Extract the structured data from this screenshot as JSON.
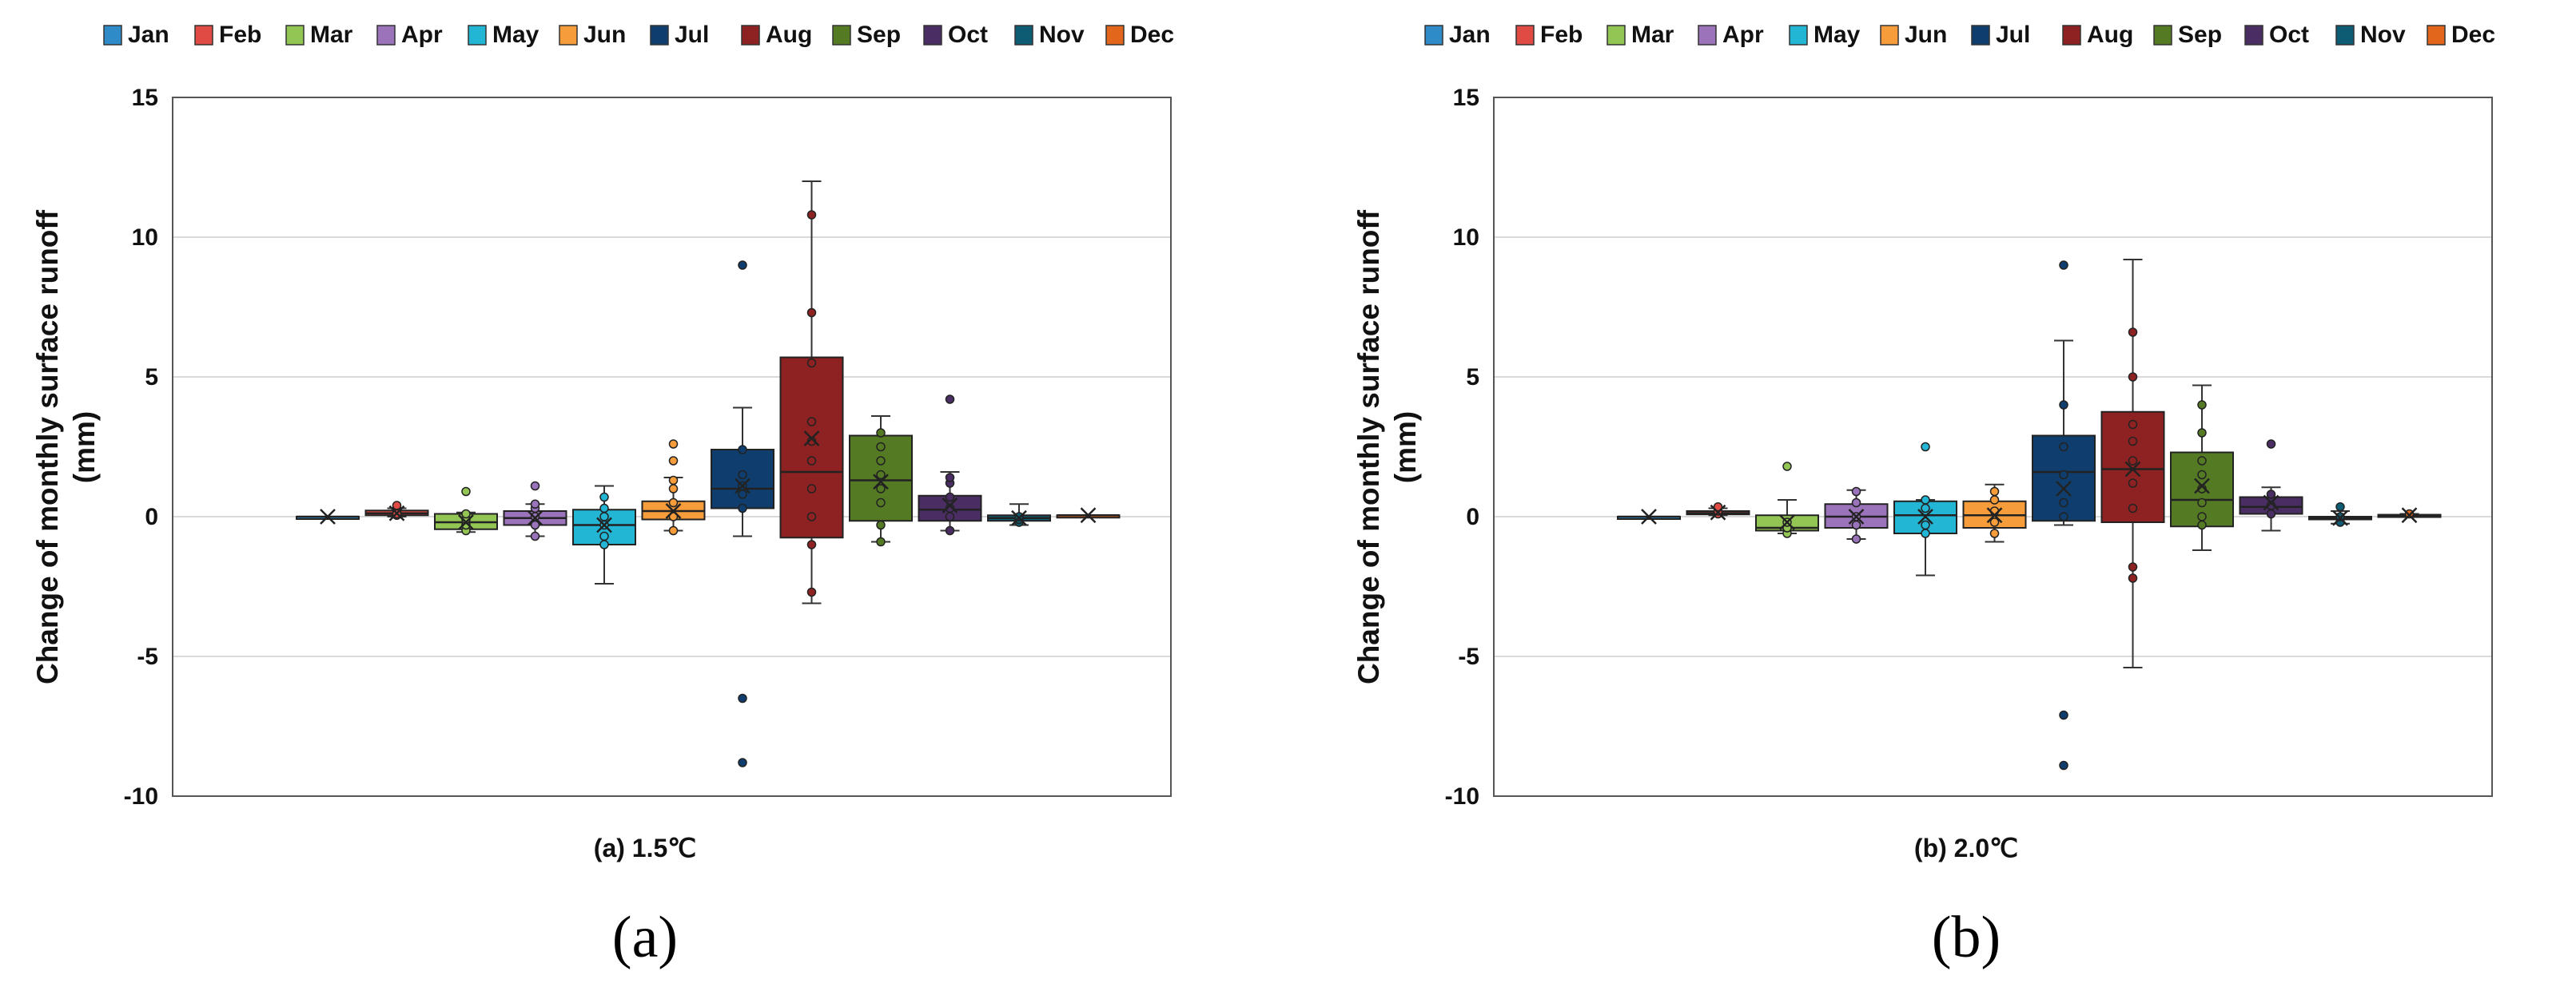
{
  "chart_data": [
    {
      "type": "box",
      "panel_label": "(a)",
      "title": "",
      "xlabel": "(a) 1.5℃",
      "ylabel_lines": [
        "Change of monthly surface runoff",
        "(mm)"
      ],
      "ylim": [
        -10,
        15
      ],
      "yticks": [
        15,
        10,
        5,
        0,
        -5,
        -10
      ],
      "grid": true,
      "legend_position": "top",
      "legend": [
        "Jan",
        "Feb",
        "Mar",
        "Apr",
        "May",
        "Jun",
        "Jul",
        "Aug",
        "Sep",
        "Oct",
        "Nov",
        "Dec"
      ],
      "colors": [
        "#2E8BC8",
        "#E04B44",
        "#92C553",
        "#9A73BB",
        "#23B5D4",
        "#F79C3A",
        "#0F3E6E",
        "#8E2222",
        "#557A24",
        "#4A2D63",
        "#0E5C73",
        "#E2661C"
      ],
      "series": [
        {
          "name": "Jan",
          "min": 0,
          "q1": 0,
          "median": 0,
          "q3": 0,
          "max": 0,
          "mean": 0,
          "points": []
        },
        {
          "name": "Feb",
          "min": 0,
          "q1": 0.05,
          "median": 0.12,
          "q3": 0.22,
          "max": 0.3,
          "mean": 0.12,
          "points": [
            0.05,
            0.15,
            0.3,
            0.4,
            0.1
          ]
        },
        {
          "name": "Mar",
          "min": -0.55,
          "q1": -0.45,
          "median": -0.2,
          "q3": 0.1,
          "max": 0.15,
          "mean": -0.2,
          "points": [
            -0.5,
            -0.3,
            -0.1,
            0.1,
            0.9
          ]
        },
        {
          "name": "Apr",
          "min": -0.7,
          "q1": -0.3,
          "median": -0.05,
          "q3": 0.2,
          "max": 0.45,
          "mean": -0.05,
          "points": [
            -0.7,
            -0.3,
            0,
            0.3,
            0.45,
            1.1
          ]
        },
        {
          "name": "May",
          "min": -2.4,
          "q1": -1.0,
          "median": -0.3,
          "q3": 0.25,
          "max": 1.1,
          "mean": -0.3,
          "points": [
            -1.0,
            -0.7,
            -0.3,
            0,
            0.3,
            0.7
          ]
        },
        {
          "name": "Jun",
          "min": -0.5,
          "q1": -0.1,
          "median": 0.2,
          "q3": 0.55,
          "max": 1.4,
          "mean": 0.2,
          "points": [
            -0.5,
            0,
            0.5,
            1,
            1.3,
            2,
            2.6
          ]
        },
        {
          "name": "Jul",
          "min": -0.7,
          "q1": 0.3,
          "median": 1.0,
          "q3": 2.4,
          "max": 3.9,
          "mean": 1.1,
          "points": [
            0.3,
            0.8,
            1.1,
            1.5,
            2.4,
            9.0,
            -6.5,
            -8.8
          ]
        },
        {
          "name": "Aug",
          "min": -3.1,
          "q1": -0.75,
          "median": 1.6,
          "q3": 5.7,
          "max": 12.0,
          "mean": 2.8,
          "points": [
            -2.7,
            -1.0,
            0,
            1,
            2,
            2.7,
            3.4,
            5.5,
            7.3,
            10.8
          ]
        },
        {
          "name": "Sep",
          "min": -0.9,
          "q1": -0.15,
          "median": 1.3,
          "q3": 2.9,
          "max": 3.6,
          "mean": 1.25,
          "points": [
            -0.9,
            -0.3,
            0.5,
            1.0,
            1.5,
            2.0,
            2.5,
            3.0
          ]
        },
        {
          "name": "Oct",
          "min": -0.5,
          "q1": -0.15,
          "median": 0.25,
          "q3": 0.75,
          "max": 1.6,
          "mean": 0.4,
          "points": [
            -0.5,
            0,
            0.3,
            0.7,
            1.2,
            1.4,
            4.2
          ]
        },
        {
          "name": "Nov",
          "min": -0.3,
          "q1": -0.15,
          "median": -0.05,
          "q3": 0.05,
          "max": 0.45,
          "mean": -0.05,
          "points": [
            -0.2,
            -0.1,
            0
          ]
        },
        {
          "name": "Dec",
          "min": 0.05,
          "q1": 0.05,
          "median": 0.05,
          "q3": 0.05,
          "max": 0.05,
          "mean": 0.05,
          "points": []
        }
      ]
    },
    {
      "type": "box",
      "panel_label": "(b)",
      "title": "",
      "xlabel": "(b) 2.0℃",
      "ylabel_lines": [
        "Change of monthly surface runoff",
        "(mm)"
      ],
      "ylim": [
        -10,
        15
      ],
      "yticks": [
        15,
        10,
        5,
        0,
        -5,
        -10
      ],
      "grid": true,
      "legend_position": "top",
      "legend": [
        "Jan",
        "Feb",
        "Mar",
        "Apr",
        "May",
        "Jun",
        "Jul",
        "Aug",
        "Sep",
        "Oct",
        "Nov",
        "Dec"
      ],
      "colors": [
        "#2E8BC8",
        "#E04B44",
        "#92C553",
        "#9A73BB",
        "#23B5D4",
        "#F79C3A",
        "#0F3E6E",
        "#8E2222",
        "#557A24",
        "#4A2D63",
        "#0E5C73",
        "#E2661C"
      ],
      "series": [
        {
          "name": "Jan",
          "min": 0,
          "q1": 0,
          "median": 0,
          "q3": 0,
          "max": 0,
          "mean": 0,
          "points": []
        },
        {
          "name": "Feb",
          "min": 0.05,
          "q1": 0.08,
          "median": 0.13,
          "q3": 0.2,
          "max": 0.3,
          "mean": 0.15,
          "points": [
            0.1,
            0.2,
            0.35
          ]
        },
        {
          "name": "Mar",
          "min": -0.6,
          "q1": -0.5,
          "median": -0.4,
          "q3": 0.05,
          "max": 0.6,
          "mean": -0.2,
          "points": [
            -0.6,
            -0.4,
            -0.2,
            1.8
          ]
        },
        {
          "name": "Apr",
          "min": -0.8,
          "q1": -0.4,
          "median": 0.0,
          "q3": 0.45,
          "max": 0.95,
          "mean": 0,
          "points": [
            -0.8,
            -0.3,
            0,
            0.5,
            0.9
          ]
        },
        {
          "name": "May",
          "min": -2.1,
          "q1": -0.6,
          "median": 0.05,
          "q3": 0.55,
          "max": 0.6,
          "mean": 0,
          "points": [
            -0.6,
            -0.3,
            0.3,
            0.6,
            2.5
          ]
        },
        {
          "name": "Jun",
          "min": -0.9,
          "q1": -0.4,
          "median": 0.05,
          "q3": 0.55,
          "max": 1.15,
          "mean": 0.05,
          "points": [
            -0.6,
            -0.2,
            0.2,
            0.6,
            0.9
          ]
        },
        {
          "name": "Jul",
          "min": -0.3,
          "q1": -0.15,
          "median": 1.6,
          "q3": 2.9,
          "max": 6.3,
          "mean": 1.0,
          "points": [
            0,
            0.5,
            1.5,
            2.5,
            4.0,
            9.0,
            -7.1,
            -8.9
          ]
        },
        {
          "name": "Aug",
          "min": -5.4,
          "q1": -0.2,
          "median": 1.7,
          "q3": 3.75,
          "max": 9.2,
          "mean": 1.7,
          "points": [
            -2.2,
            -1.8,
            0.3,
            1.2,
            2.0,
            2.7,
            3.3,
            5.0,
            6.6
          ]
        },
        {
          "name": "Sep",
          "min": -1.2,
          "q1": -0.35,
          "median": 0.6,
          "q3": 2.3,
          "max": 4.7,
          "mean": 1.1,
          "points": [
            -0.3,
            0,
            0.5,
            1.0,
            1.5,
            2.0,
            3.0,
            4.0
          ]
        },
        {
          "name": "Oct",
          "min": -0.5,
          "q1": 0.1,
          "median": 0.35,
          "q3": 0.7,
          "max": 1.05,
          "mean": 0.5,
          "points": [
            0.1,
            0.4,
            0.8,
            2.6
          ]
        },
        {
          "name": "Nov",
          "min": -0.25,
          "q1": -0.1,
          "median": -0.05,
          "q3": 0.0,
          "max": 0.2,
          "mean": -0.05,
          "points": [
            -0.2,
            0,
            0.35
          ]
        },
        {
          "name": "Dec",
          "min": 0.02,
          "q1": 0.03,
          "median": 0.05,
          "q3": 0.07,
          "max": 0.1,
          "mean": 0.05,
          "points": [
            0.1
          ]
        }
      ]
    }
  ]
}
